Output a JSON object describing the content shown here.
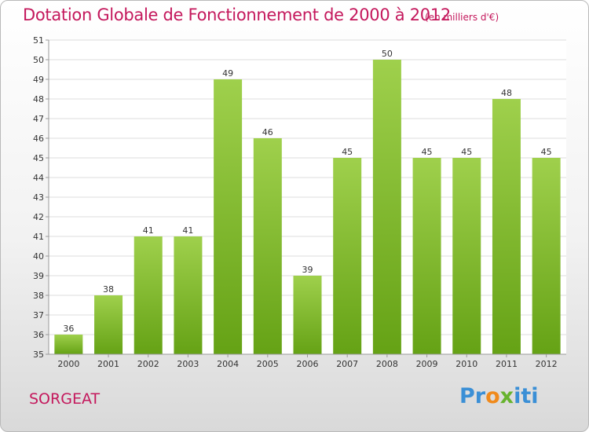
{
  "title": "Dotation Globale de Fonctionnement de 2000 à 2012",
  "subtitle": "(en milliers d'€)",
  "commune": "SORGEAT",
  "logo": {
    "p1": "Pr",
    "p2": "o",
    "p3": "x",
    "p4": "iti"
  },
  "colors": {
    "accent": "#c4185c",
    "bar_top": "#9fd04c",
    "bar_bottom": "#65a215"
  },
  "chart_data": {
    "type": "bar",
    "title": "Dotation Globale de Fonctionnement de 2000 à 2012",
    "subtitle": "(en milliers d'€)",
    "categories": [
      "2000",
      "2001",
      "2002",
      "2003",
      "2004",
      "2005",
      "2006",
      "2007",
      "2008",
      "2009",
      "2010",
      "2011",
      "2012"
    ],
    "values": [
      36,
      38,
      41,
      41,
      49,
      46,
      39,
      45,
      50,
      45,
      45,
      48,
      45
    ],
    "ylim": [
      35,
      51
    ],
    "yticks": [
      35,
      36,
      37,
      38,
      39,
      40,
      41,
      42,
      43,
      44,
      45,
      46,
      47,
      48,
      49,
      50,
      51
    ],
    "grid": true,
    "data_labels": true
  }
}
